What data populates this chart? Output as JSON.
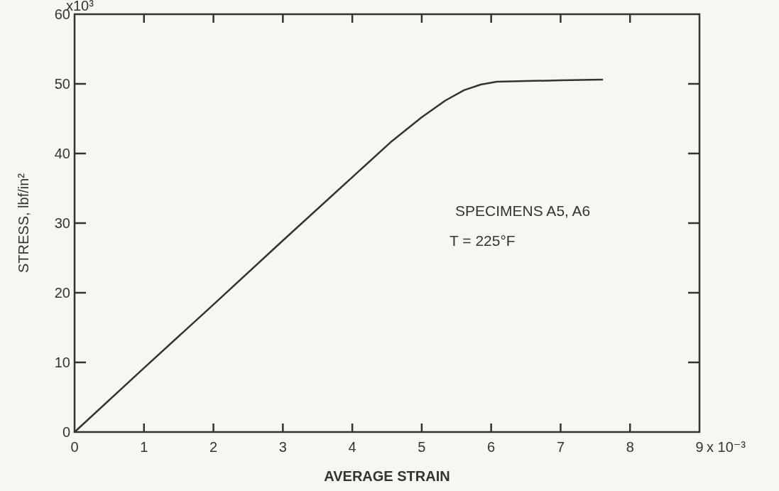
{
  "chart_data": {
    "type": "line",
    "xlabel": "AVERAGE STRAIN",
    "ylabel": "STRESS, lbf/in²",
    "x": [
      0,
      1,
      2,
      3,
      4,
      4.55,
      5,
      5.34,
      5.61,
      5.85,
      6.08,
      6.5,
      7,
      7.6
    ],
    "series": [
      {
        "color": "#333333",
        "values": [
          0,
          9.2,
          18.3,
          27.5,
          36.6,
          41.6,
          45.2,
          47.6,
          49.1,
          49.9,
          50.3,
          50.4,
          50.5,
          50.6
        ]
      }
    ],
    "xlim": [
      0,
      9
    ],
    "xticks": [
      0,
      1,
      2,
      3,
      4,
      5,
      6,
      7,
      8,
      9
    ],
    "ylim": [
      0,
      60
    ],
    "yticks": [
      0,
      10,
      20,
      30,
      40,
      50,
      60
    ],
    "annotations": [
      "SPECIMENS A5, A6",
      "T = 225°F",
      "x10³",
      "x 10⁻³"
    ],
    "grid": false,
    "marker": "none",
    "line_style": "solid"
  }
}
